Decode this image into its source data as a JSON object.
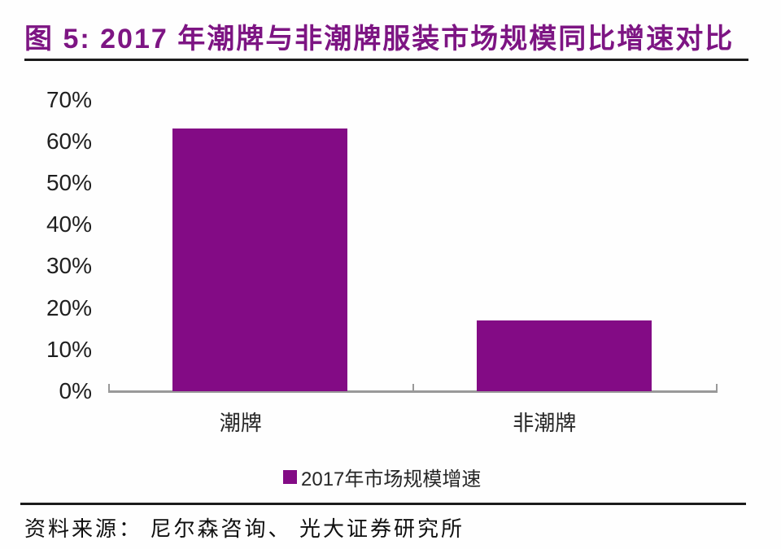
{
  "figure": {
    "title": "图 5: 2017 年潮牌与非潮牌服装市场规模同比增速对比",
    "source": "资料来源： 尼尔森咨询、 光大证券研究所"
  },
  "colors": {
    "title": "#7d1583",
    "bar": "#830b85",
    "axis": "#999999",
    "rule": "#1b1b1b"
  },
  "chart_data": {
    "type": "bar",
    "title": "2017 年潮牌与非潮牌服装市场规模同比增速对比",
    "categories": [
      "潮牌",
      "非潮牌"
    ],
    "values": [
      63,
      17
    ],
    "unit": "%",
    "series_name": "2017年市场规模增速",
    "legend": [
      "2017年市场规模增速"
    ],
    "legend_position": "bottom-center",
    "xlabel": "",
    "ylabel": "",
    "ylim": [
      0,
      70
    ],
    "ytick_step": 10,
    "ytick_labels": [
      "0%",
      "10%",
      "20%",
      "30%",
      "40%",
      "50%",
      "60%",
      "70%"
    ],
    "grid": false,
    "bar_color": "#830b85"
  }
}
